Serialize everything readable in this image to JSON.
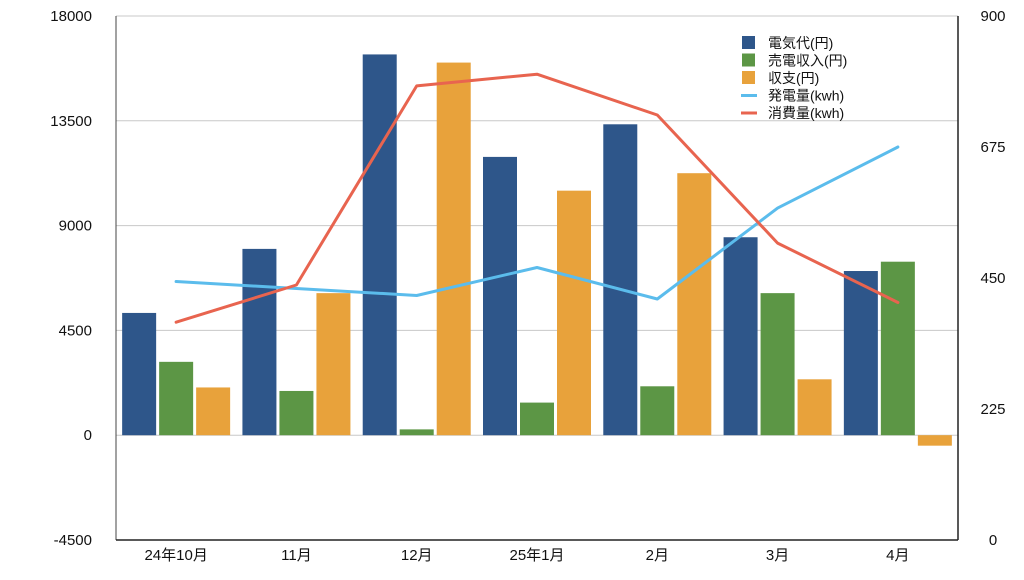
{
  "chart_data": {
    "type": "bar",
    "categories": [
      "24年10月",
      "11月",
      "12月",
      "25年1月",
      "2月",
      "3月",
      "4月"
    ],
    "series": [
      {
        "name": "電気代(円)",
        "axis": "left",
        "kind": "bar",
        "color": "#2e568a",
        "values": [
          5250,
          8000,
          16350,
          11950,
          13350,
          8500,
          7050
        ]
      },
      {
        "name": "売電収入(円)",
        "axis": "left",
        "kind": "bar",
        "color": "#5c9645",
        "values": [
          3150,
          1900,
          250,
          1400,
          2100,
          6100,
          7450
        ]
      },
      {
        "name": "収支(円)",
        "axis": "left",
        "kind": "bar",
        "color": "#e8a23b",
        "values": [
          2050,
          6100,
          16000,
          10500,
          11250,
          2400,
          -450
        ]
      },
      {
        "name": "発電量(kwh)",
        "axis": "right",
        "kind": "line",
        "color": "#5bbcec",
        "values": [
          444,
          432,
          420,
          468,
          414,
          570,
          675
        ]
      },
      {
        "name": "消費量(kwh)",
        "axis": "right",
        "kind": "line",
        "color": "#e8644f",
        "values": [
          374,
          438,
          780,
          800,
          730,
          510,
          408
        ]
      }
    ],
    "y_left": {
      "ylim": [
        -4500,
        18000
      ],
      "ticks": [
        "18000",
        "13500",
        "9000",
        "4500",
        "0",
        "-4500"
      ],
      "tick_values": [
        18000,
        13500,
        9000,
        4500,
        0,
        -4500
      ]
    },
    "y_right": {
      "ylim": [
        0,
        900
      ],
      "ticks": [
        "900",
        "675",
        "450",
        "225",
        "0"
      ],
      "tick_values": [
        900,
        675,
        450,
        225,
        0
      ]
    },
    "grid": true,
    "legend_position": "top-right"
  }
}
